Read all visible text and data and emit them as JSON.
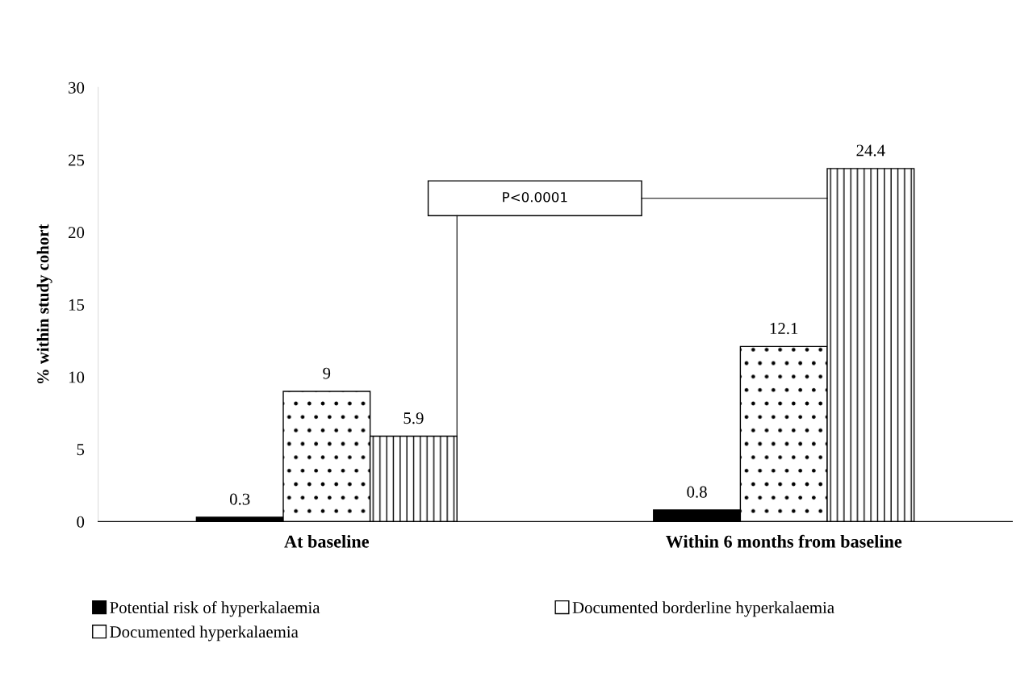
{
  "chart_data": {
    "type": "bar",
    "ylabel": "% within study cohort",
    "categories": [
      "At baseline",
      "Within 6 months from baseline"
    ],
    "series": [
      {
        "name": "Potential risk of hyperkalaemia",
        "color": "#000000",
        "values": [
          0.3,
          0.8
        ]
      },
      {
        "name": "Documented borderline hyperkalaemia",
        "color": "#ffffff",
        "values": [
          9,
          12.1
        ]
      },
      {
        "name": "Documented hyperkalaemia",
        "color": "#ffffff",
        "values": [
          5.9,
          24.4
        ]
      }
    ],
    "ylim": [
      0,
      30
    ],
    "yticks": [
      0,
      5,
      10,
      15,
      20,
      25,
      30
    ],
    "data_labels": true,
    "grid": false,
    "legend": "bottom",
    "annotations": [
      "P<0.0001"
    ]
  }
}
